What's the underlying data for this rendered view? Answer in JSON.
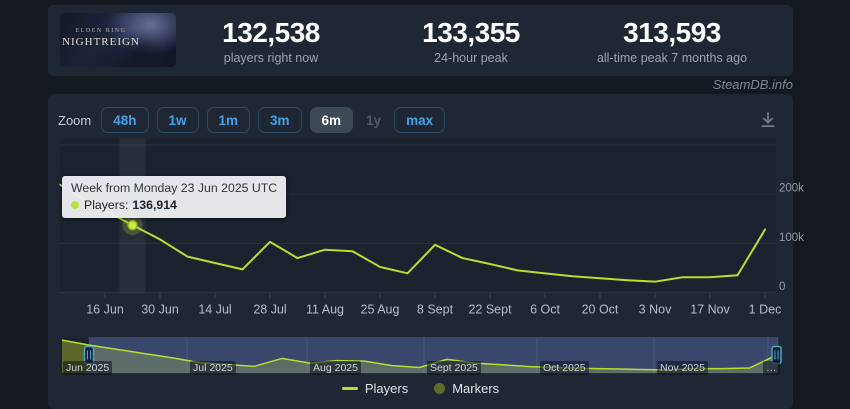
{
  "header": {
    "game_title_line1": "ELDEN RING",
    "game_title_line2": "NIGHTREIGN",
    "stats": [
      {
        "value": "132,538",
        "label": "players right now"
      },
      {
        "value": "133,355",
        "label": "24-hour peak"
      },
      {
        "value": "313,593",
        "label": "all-time peak 7 months ago"
      }
    ]
  },
  "watermark": "SteamDB.info",
  "toolbar": {
    "zoom_label": "Zoom",
    "buttons": [
      {
        "label": "48h",
        "state": "normal"
      },
      {
        "label": "1w",
        "state": "normal"
      },
      {
        "label": "1m",
        "state": "normal"
      },
      {
        "label": "3m",
        "state": "normal"
      },
      {
        "label": "6m",
        "state": "selected"
      },
      {
        "label": "1y",
        "state": "disabled"
      },
      {
        "label": "max",
        "state": "normal"
      }
    ]
  },
  "tooltip": {
    "title": "Week from Monday 23 Jun 2025 UTC",
    "series_label": "Players:",
    "value": "136,914"
  },
  "legend": {
    "players": "Players",
    "markers": "Markers"
  },
  "chart_data": {
    "type": "line",
    "title": "",
    "xlabel": "",
    "ylabel": "Players",
    "ylim": [
      0,
      300000
    ],
    "grid": true,
    "legend_position": "bottom",
    "series": [
      {
        "name": "Players",
        "color": "#b6e02e",
        "x": [
          "2025-06-02",
          "2025-06-09",
          "2025-06-16",
          "2025-06-23",
          "2025-06-30",
          "2025-07-07",
          "2025-07-14",
          "2025-07-21",
          "2025-07-28",
          "2025-08-04",
          "2025-08-11",
          "2025-08-18",
          "2025-08-25",
          "2025-09-01",
          "2025-09-08",
          "2025-09-15",
          "2025-09-22",
          "2025-09-29",
          "2025-10-06",
          "2025-10-13",
          "2025-10-20",
          "2025-10-27",
          "2025-11-03",
          "2025-11-10",
          "2025-11-17",
          "2025-11-24",
          "2025-12-01"
        ],
        "values": [
          232000,
          197000,
          167000,
          136914,
          108000,
          73000,
          60000,
          47000,
          103000,
          70000,
          87000,
          84000,
          52000,
          39000,
          97000,
          70000,
          58000,
          45000,
          39000,
          33000,
          29000,
          25000,
          22000,
          31000,
          31000,
          35000,
          128000
        ]
      },
      {
        "name": "Markers",
        "color": "#5f6d2b",
        "values": []
      }
    ],
    "marked_point": {
      "x": "2025-06-23",
      "value": 136914
    },
    "xticks": [
      "16 Jun",
      "30 Jun",
      "14 Jul",
      "28 Jul",
      "11 Aug",
      "25 Aug",
      "8 Sept",
      "22 Sept",
      "6 Oct",
      "20 Oct",
      "3 Nov",
      "17 Nov",
      "1 Dec"
    ],
    "yticks": [
      {
        "label": "0",
        "value": 0
      },
      {
        "label": "100k",
        "value": 100000
      },
      {
        "label": "200k",
        "value": 200000
      }
    ],
    "navigator_months": [
      "Jun 2025",
      "Jul 2025",
      "Aug 2025",
      "Sept 2025",
      "Oct 2025",
      "Nov 2025",
      "…"
    ]
  },
  "colors": {
    "page_bg": "#141821",
    "panel_bg": "#1e2733",
    "line": "#b6e02e",
    "marker_legend": "#5f6d2b",
    "button_text": "#3fa3ea",
    "grid": "#293240",
    "navigator_mask": "rgba(93,115,185,0.45)",
    "navigator_area": "rgba(154,172,38,0.5)",
    "tooltip_bg": "#eceef0"
  }
}
